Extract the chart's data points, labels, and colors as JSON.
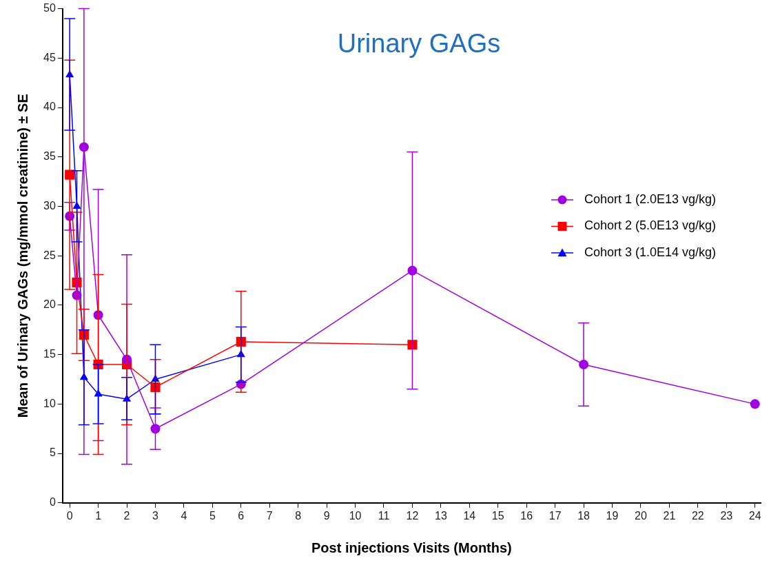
{
  "chart_data": {
    "type": "line",
    "title": "Urinary GAGs",
    "xlabel": "Post injections Visits (Months)",
    "ylabel": "Mean of Urinary GAGs (mg/mmol creatinine) ± SE",
    "xlim": [
      -0.25,
      24.2
    ],
    "xticks": [
      0,
      1,
      2,
      3,
      4,
      5,
      6,
      7,
      8,
      9,
      10,
      11,
      12,
      13,
      14,
      15,
      16,
      17,
      18,
      19,
      20,
      21,
      22,
      23,
      24
    ],
    "ylim": [
      0,
      50
    ],
    "yticks": [
      0,
      5,
      10,
      15,
      20,
      25,
      30,
      35,
      40,
      45,
      50
    ],
    "grid": false,
    "legend": "right",
    "series": [
      {
        "name": "Cohort 1 (2.0E13 vg/kg)",
        "color": "#a000e0",
        "marker": "circle",
        "x": [
          0,
          0.25,
          0.5,
          1,
          2,
          3,
          6,
          12,
          18,
          24
        ],
        "values": [
          29,
          21,
          36,
          19,
          14.5,
          7.5,
          12,
          23.5,
          14,
          10
        ],
        "errors": [
          [
            27.6,
            30.4
          ],
          null,
          [
            4.9,
            50
          ],
          [
            6.3,
            31.7
          ],
          [
            3.9,
            25.1
          ],
          [
            5.4,
            9.6
          ],
          null,
          [
            11.5,
            35.5
          ],
          [
            9.8,
            18.2
          ],
          null
        ]
      },
      {
        "name": "Cohort 2 (5.0E13 vg/kg)",
        "color": "#ff0000",
        "marker": "square",
        "x": [
          0,
          0.25,
          0.5,
          1,
          2,
          3,
          6,
          12
        ],
        "values": [
          33.2,
          22.3,
          17,
          14,
          14,
          11.7,
          16.3,
          16
        ],
        "errors": [
          [
            21.6,
            44.8
          ],
          [
            15.1,
            29.4
          ],
          [
            14.4,
            19.6
          ],
          [
            4.9,
            23.1
          ],
          [
            7.9,
            20.1
          ],
          [
            9,
            14.5
          ],
          [
            11.2,
            21.4
          ],
          null
        ]
      },
      {
        "name": "Cohort 3 (1.0E14 vg/kg)",
        "color": "#0000ff",
        "marker": "triangle",
        "x": [
          0,
          0.25,
          0.5,
          1,
          2,
          3,
          6
        ],
        "values": [
          43.3,
          30,
          12.7,
          11,
          10.5,
          12.5,
          15
        ],
        "errors": [
          [
            37.7,
            49
          ],
          [
            26.4,
            33.6
          ],
          [
            7.9,
            17.5
          ],
          [
            8,
            14
          ],
          [
            8.4,
            12.7
          ],
          [
            9,
            16
          ],
          [
            12.2,
            17.8
          ]
        ]
      }
    ]
  }
}
